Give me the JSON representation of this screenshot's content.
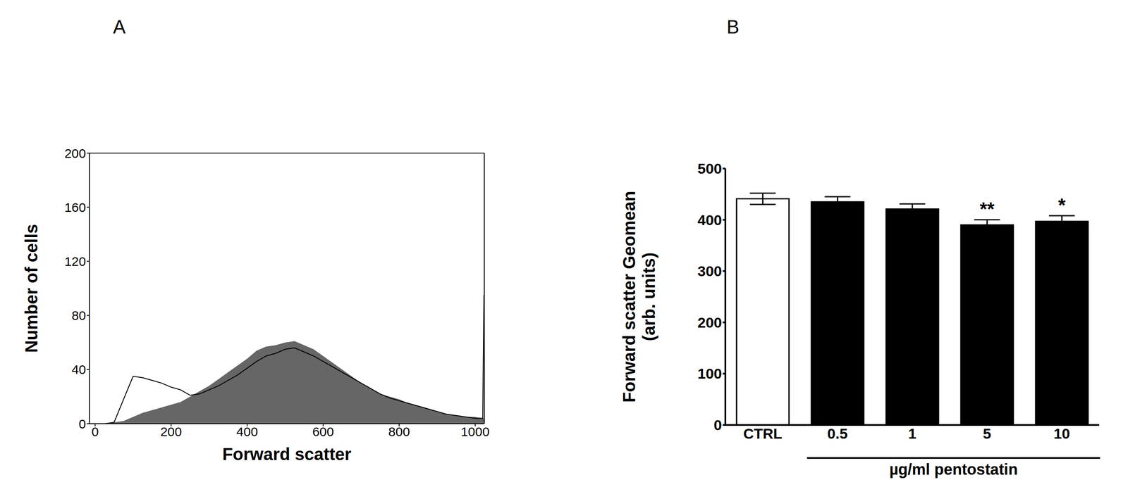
{
  "chart_data": [
    {
      "type": "area",
      "panel": "A",
      "x": [
        0,
        25,
        50,
        75,
        100,
        125,
        150,
        175,
        200,
        225,
        250,
        275,
        300,
        325,
        350,
        375,
        400,
        425,
        450,
        475,
        500,
        525,
        550,
        575,
        600,
        625,
        650,
        675,
        700,
        725,
        750,
        775,
        800,
        825,
        850,
        875,
        900,
        925,
        950,
        975,
        1000,
        1020,
        1023
      ],
      "series": [
        {
          "type": "area",
          "color": "#666666",
          "values": [
            0,
            0,
            1,
            2,
            5,
            8,
            10,
            12,
            14,
            16,
            20,
            24,
            28,
            33,
            38,
            43,
            48,
            54,
            57,
            58,
            60,
            61,
            58,
            55,
            50,
            45,
            40,
            35,
            30,
            26,
            22,
            20,
            18,
            15,
            13,
            11,
            9,
            7,
            6,
            5,
            5,
            4,
            4
          ]
        },
        {
          "type": "line",
          "color": "#000000",
          "values": [
            0,
            0,
            1,
            18,
            35,
            34,
            32,
            30,
            27,
            25,
            21,
            22,
            25,
            28,
            32,
            36,
            41,
            46,
            50,
            52,
            55,
            56,
            53,
            50,
            46,
            42,
            38,
            34,
            30,
            26,
            22,
            19,
            17,
            15,
            13,
            11,
            9,
            7,
            6,
            5,
            4,
            4,
            95
          ]
        }
      ],
      "xlabel": "Forward scatter",
      "ylabel": "Number of cells",
      "xlim": [
        -15,
        1024
      ],
      "xticks": [
        0,
        200,
        400,
        600,
        800,
        1000
      ],
      "ylim": [
        0,
        200
      ],
      "yticks": [
        0,
        40,
        80,
        120,
        160,
        200
      ]
    },
    {
      "type": "bar",
      "panel": "B",
      "categories": [
        "CTRL",
        "0.5",
        "1",
        "5",
        "10"
      ],
      "values": [
        441,
        435,
        421,
        390,
        397
      ],
      "errors": [
        11,
        10,
        10,
        10,
        11
      ],
      "colors": [
        "#ffffff",
        "#000000",
        "#000000",
        "#000000",
        "#000000"
      ],
      "significance": [
        null,
        null,
        null,
        "**",
        "*"
      ],
      "xlabel": "µg/ml pentostatin",
      "ylabel": [
        "Forward scatter Geomean",
        "(arb. units)"
      ],
      "ylim": [
        0,
        500
      ],
      "yticks": [
        0,
        100,
        200,
        300,
        400,
        500
      ]
    }
  ]
}
